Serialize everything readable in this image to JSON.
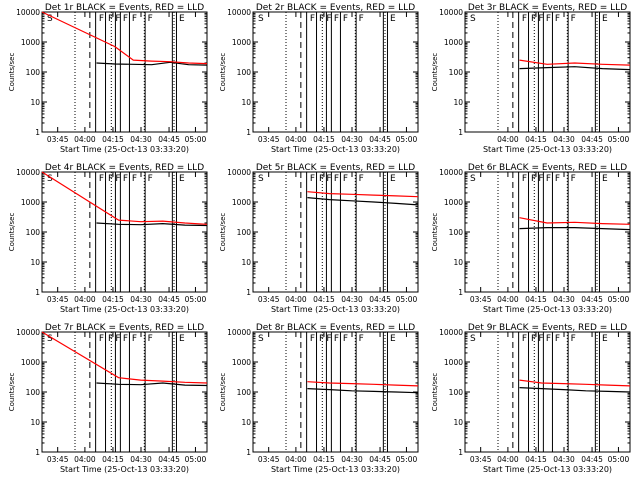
{
  "colors": {
    "events": "#000000",
    "lld": "#ff0000",
    "background": "#ffffff"
  },
  "chart_data": [
    {
      "type": "line",
      "title": "Det 1r BLACK = Events, RED = LLD",
      "ylabel": "Counts/sec",
      "xlabel": "Start Time (25-Oct-13 03:33:20)",
      "ylim": [
        1,
        10000
      ],
      "yscale": "log",
      "x_tick_labels": [
        "03:45",
        "04:00",
        "04:15",
        "04:30",
        "04:45",
        "05:00"
      ],
      "y_tick_labels": [
        "1",
        "10",
        "100",
        "1000",
        "10000"
      ],
      "flags": [
        "S",
        "F",
        "F",
        "F",
        "F",
        "F",
        "F",
        "E"
      ],
      "grid": false,
      "series": [
        {
          "name": "Events",
          "color": "#000000",
          "values": [
            200,
            185,
            180,
            175,
            210,
            175,
            170
          ]
        },
        {
          "name": "LLD",
          "color": "#ff0000",
          "values": [
            10000,
            700,
            250,
            230,
            220,
            200,
            190
          ]
        }
      ]
    },
    {
      "type": "line",
      "title": "Det 2r BLACK = Events, RED = LLD",
      "ylabel": "Counts/sec",
      "xlabel": "Start Time (25-Oct-13 03:33:20)",
      "ylim": [
        1,
        10000
      ],
      "yscale": "log",
      "x_tick_labels": [
        "03:45",
        "04:00",
        "04:15",
        "04:30",
        "04:45",
        "05:00"
      ],
      "y_tick_labels": [
        "1",
        "10",
        "100",
        "1000",
        "10000"
      ],
      "flags": [
        "S",
        "F",
        "F",
        "F",
        "F",
        "F",
        "F",
        "E"
      ],
      "grid": false,
      "series": []
    },
    {
      "type": "line",
      "title": "Det 3r BLACK = Events, RED = LLD",
      "ylabel": "Counts/sec",
      "xlabel": "Start Time (25-Oct-13 03:33:20)",
      "ylim": [
        1,
        10000
      ],
      "yscale": "log",
      "x_tick_labels": [
        "04:00",
        "04:15",
        "04:30",
        "04:45",
        "05:00"
      ],
      "y_tick_labels": [
        "1",
        "10",
        "100",
        "1000",
        "10000"
      ],
      "flags": [
        "S",
        "F",
        "F",
        "F",
        "F",
        "F",
        "F",
        "E"
      ],
      "grid": false,
      "series": [
        {
          "name": "Events",
          "color": "#000000",
          "values": [
            130,
            140,
            150,
            130,
            120
          ]
        },
        {
          "name": "LLD",
          "color": "#ff0000",
          "values": [
            250,
            180,
            200,
            180,
            170
          ]
        }
      ]
    },
    {
      "type": "line",
      "title": "Det 4r BLACK = Events, RED = LLD",
      "ylabel": "Counts/sec",
      "xlabel": "Start Time (25-Oct-13 03:33:20)",
      "ylim": [
        1,
        10000
      ],
      "yscale": "log",
      "x_tick_labels": [
        "03:45",
        "04:00",
        "04:15",
        "04:30",
        "04:45",
        "05:00"
      ],
      "y_tick_labels": [
        "1",
        "10",
        "100",
        "1000",
        "10000"
      ],
      "flags": [
        "S",
        "F",
        "F",
        "F",
        "F",
        "F",
        "F",
        "E"
      ],
      "grid": false,
      "series": [
        {
          "name": "Events",
          "color": "#000000",
          "values": [
            200,
            180,
            175,
            190,
            170,
            165
          ]
        },
        {
          "name": "LLD",
          "color": "#ff0000",
          "values": [
            10000,
            250,
            220,
            230,
            200,
            180
          ]
        }
      ]
    },
    {
      "type": "line",
      "title": "Det 5r BLACK = Events, RED = LLD",
      "ylabel": "Counts/sec",
      "xlabel": "Start Time (25-Oct-13 03:33:20)",
      "ylim": [
        1,
        10000
      ],
      "yscale": "log",
      "x_tick_labels": [
        "03:45",
        "04:00",
        "04:15",
        "04:30",
        "04:45",
        "05:00"
      ],
      "y_tick_labels": [
        "1",
        "10",
        "100",
        "1000",
        "10000"
      ],
      "flags": [
        "S",
        "F",
        "F",
        "F",
        "F",
        "F",
        "F",
        "E"
      ],
      "grid": false,
      "series": [
        {
          "name": "Events",
          "color": "#000000",
          "values": [
            1400,
            1200,
            1100,
            1000,
            900,
            800
          ]
        },
        {
          "name": "LLD",
          "color": "#ff0000",
          "values": [
            2200,
            1900,
            1800,
            1700,
            1600,
            1500
          ]
        }
      ]
    },
    {
      "type": "line",
      "title": "Det 6r BLACK = Events, RED = LLD",
      "ylabel": "Counts/sec",
      "xlabel": "Start Time (25-Oct-13 03:33:20)",
      "ylim": [
        1,
        10000
      ],
      "yscale": "log",
      "x_tick_labels": [
        "03:45",
        "04:00",
        "04:15",
        "04:30",
        "04:45",
        "05:00"
      ],
      "y_tick_labels": [
        "1",
        "10",
        "100",
        "1000",
        "10000"
      ],
      "flags": [
        "S",
        "F",
        "F",
        "F",
        "F",
        "F",
        "F",
        "E"
      ],
      "grid": false,
      "series": [
        {
          "name": "Events",
          "color": "#000000",
          "values": [
            130,
            140,
            140,
            130,
            120
          ]
        },
        {
          "name": "LLD",
          "color": "#ff0000",
          "values": [
            300,
            200,
            210,
            190,
            180
          ]
        }
      ]
    },
    {
      "type": "line",
      "title": "Det 7r BLACK = Events, RED = LLD",
      "ylabel": "Counts/sec",
      "xlabel": "Start Time (25-Oct-13 03:33:20)",
      "ylim": [
        1,
        10000
      ],
      "yscale": "log",
      "x_tick_labels": [
        "03:45",
        "04:00",
        "04:15",
        "04:30",
        "04:45",
        "05:00"
      ],
      "y_tick_labels": [
        "1",
        "10",
        "100",
        "1000",
        "10000"
      ],
      "flags": [
        "S",
        "F",
        "F",
        "F",
        "F",
        "F",
        "F",
        "E"
      ],
      "grid": false,
      "series": [
        {
          "name": "Events",
          "color": "#000000",
          "values": [
            200,
            180,
            175,
            200,
            170,
            165
          ]
        },
        {
          "name": "LLD",
          "color": "#ff0000",
          "values": [
            10000,
            300,
            250,
            230,
            210,
            200
          ]
        }
      ]
    },
    {
      "type": "line",
      "title": "Det 8r BLACK = Events, RED = LLD",
      "ylabel": "Counts/sec",
      "xlabel": "Start Time (25-Oct-13 03:33:20)",
      "ylim": [
        1,
        10000
      ],
      "yscale": "log",
      "x_tick_labels": [
        "03:45",
        "04:00",
        "04:15",
        "04:30",
        "04:45",
        "05:00"
      ],
      "y_tick_labels": [
        "1",
        "10",
        "100",
        "1000",
        "10000"
      ],
      "flags": [
        "S",
        "F",
        "F",
        "F",
        "F",
        "F",
        "F",
        "E"
      ],
      "grid": false,
      "series": [
        {
          "name": "Events",
          "color": "#000000",
          "values": [
            130,
            120,
            110,
            105,
            100,
            95
          ]
        },
        {
          "name": "LLD",
          "color": "#ff0000",
          "values": [
            220,
            200,
            190,
            180,
            170,
            160
          ]
        }
      ]
    },
    {
      "type": "line",
      "title": "Det 9r BLACK = Events, RED = LLD",
      "ylabel": "Counts/sec",
      "xlabel": "Start Time (25-Oct-13 03:33:20)",
      "ylim": [
        1,
        10000
      ],
      "yscale": "log",
      "x_tick_labels": [
        "03:45",
        "04:00",
        "04:15",
        "04:30",
        "04:45",
        "05:00"
      ],
      "y_tick_labels": [
        "1",
        "10",
        "100",
        "1000",
        "10000"
      ],
      "flags": [
        "S",
        "F",
        "F",
        "F",
        "F",
        "F",
        "F",
        "E"
      ],
      "grid": false,
      "series": [
        {
          "name": "Events",
          "color": "#000000",
          "values": [
            140,
            130,
            120,
            110,
            105,
            100
          ]
        },
        {
          "name": "LLD",
          "color": "#ff0000",
          "values": [
            250,
            200,
            190,
            180,
            170,
            160
          ]
        }
      ]
    }
  ]
}
